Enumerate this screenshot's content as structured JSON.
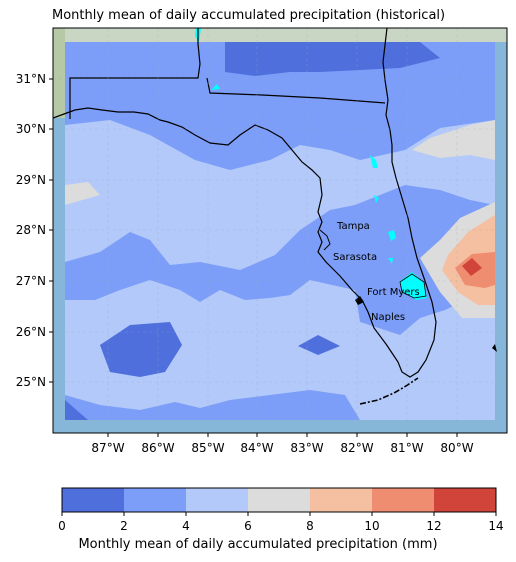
{
  "title": "Monthly mean of daily accumulated precipitation (historical)",
  "map": {
    "lon_ticks": [
      "87°W",
      "86°W",
      "85°W",
      "84°W",
      "83°W",
      "82°W",
      "81°W",
      "80°W"
    ],
    "lat_ticks": [
      "31°N",
      "30°N",
      "29°N",
      "28°N",
      "27°N",
      "26°N",
      "25°N"
    ],
    "cities": [
      "Tampa",
      "Sarasota",
      "Fort Myers",
      "Naples"
    ],
    "colors": {
      "bin_0_2": "#4f6fdc",
      "bin_2_4": "#7c9ef8",
      "bin_4_6": "#b2c9fa",
      "bin_6_8": "#dcdcdc",
      "bin_8_10": "#f5bfa2",
      "bin_10_12": "#ef8d70",
      "bin_12_14": "#d1443a",
      "water_patch": "#00ffff",
      "basemap": "#8fb8d8"
    }
  },
  "colorbar": {
    "ticks": [
      "0",
      "2",
      "4",
      "6",
      "8",
      "10",
      "12",
      "14"
    ],
    "label": "Monthly mean of daily accumulated precipitation (mm)"
  }
}
